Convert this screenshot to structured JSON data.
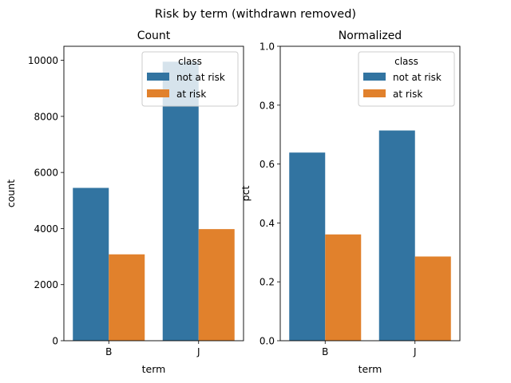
{
  "figure": {
    "suptitle": "Risk by term (withdrawn removed)"
  },
  "chart_data": [
    {
      "type": "bar",
      "title": "Count",
      "xlabel": "term",
      "ylabel": "count",
      "categories": [
        "B",
        "J"
      ],
      "ylim": [
        0,
        10500
      ],
      "yticks": [
        0,
        2000,
        4000,
        6000,
        8000,
        10000
      ],
      "ytick_labels": [
        "0",
        "2000",
        "4000",
        "6000",
        "8000",
        "10000"
      ],
      "series": [
        {
          "name": "not at risk",
          "values": [
            5450,
            9950
          ]
        },
        {
          "name": "at risk",
          "values": [
            3080,
            3980
          ]
        }
      ],
      "legend": {
        "title": "class",
        "position": "upper-right"
      },
      "colors": [
        "#3274a1",
        "#e1812c"
      ],
      "grid": false
    },
    {
      "type": "bar",
      "title": "Normalized",
      "xlabel": "term",
      "ylabel": "pct",
      "categories": [
        "B",
        "J"
      ],
      "ylim": [
        0,
        1.0
      ],
      "yticks": [
        0.0,
        0.2,
        0.4,
        0.6,
        0.8,
        1.0
      ],
      "ytick_labels": [
        "0.0",
        "0.2",
        "0.4",
        "0.6",
        "0.8",
        "1.0"
      ],
      "series": [
        {
          "name": "not at risk",
          "values": [
            0.639,
            0.714
          ]
        },
        {
          "name": "at risk",
          "values": [
            0.361,
            0.286
          ]
        }
      ],
      "legend": {
        "title": "class",
        "position": "upper-right"
      },
      "colors": [
        "#3274a1",
        "#e1812c"
      ],
      "grid": false
    }
  ]
}
